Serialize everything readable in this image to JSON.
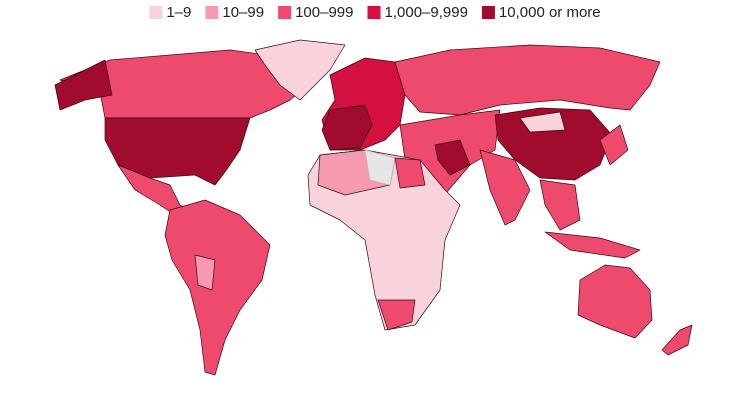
{
  "legend": {
    "items": [
      {
        "label": "1–9",
        "color": "#f9d3dc"
      },
      {
        "label": "10–99",
        "color": "#f59ab0"
      },
      {
        "label": "100–999",
        "color": "#ee4a6e"
      },
      {
        "label": "1,000–9,999",
        "color": "#d3103f"
      },
      {
        "label": "10,000 or more",
        "color": "#a10b2e"
      }
    ]
  }
}
